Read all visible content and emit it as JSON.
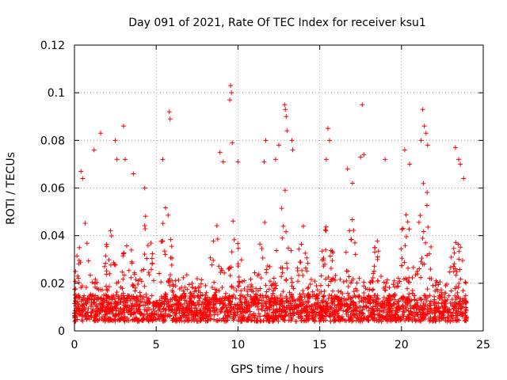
{
  "chart_data": {
    "type": "scatter",
    "title": "Day 091 of 2021, Rate Of TEC Index for receiver ksu1",
    "xlabel": "GPS time / hours",
    "ylabel": "ROTI / TECUs",
    "xlim": [
      0,
      25
    ],
    "ylim": [
      0,
      0.12
    ],
    "xticks": [
      0,
      5,
      10,
      15,
      20,
      25
    ],
    "xtick_labels": [
      "0",
      "5",
      "10",
      "15",
      "20",
      "25"
    ],
    "yticks": [
      0,
      0.02,
      0.04,
      0.06,
      0.08,
      0.1,
      0.12
    ],
    "ytick_labels": [
      "0",
      "0.02",
      "0.04",
      "0.06",
      "0.08",
      "0.1",
      "0.12"
    ],
    "grid": true,
    "marker": "plus",
    "marker_color": "#ff0000",
    "series": [
      {
        "name": "ROTI",
        "x_range": [
          0,
          24
        ],
        "baseline_typical": [
          0.004,
          0.015
        ],
        "notable_points": [
          {
            "x": 0.4,
            "y": 0.067
          },
          {
            "x": 0.5,
            "y": 0.064
          },
          {
            "x": 1.2,
            "y": 0.076
          },
          {
            "x": 1.6,
            "y": 0.083
          },
          {
            "x": 2.5,
            "y": 0.08
          },
          {
            "x": 2.6,
            "y": 0.072
          },
          {
            "x": 3.0,
            "y": 0.086
          },
          {
            "x": 3.1,
            "y": 0.072
          },
          {
            "x": 3.6,
            "y": 0.066
          },
          {
            "x": 4.3,
            "y": 0.06
          },
          {
            "x": 5.4,
            "y": 0.072
          },
          {
            "x": 5.8,
            "y": 0.092
          },
          {
            "x": 5.85,
            "y": 0.089
          },
          {
            "x": 8.9,
            "y": 0.075
          },
          {
            "x": 9.1,
            "y": 0.071
          },
          {
            "x": 9.55,
            "y": 0.103
          },
          {
            "x": 9.6,
            "y": 0.1
          },
          {
            "x": 9.5,
            "y": 0.097
          },
          {
            "x": 9.65,
            "y": 0.079
          },
          {
            "x": 10.0,
            "y": 0.071
          },
          {
            "x": 11.7,
            "y": 0.08
          },
          {
            "x": 11.6,
            "y": 0.071
          },
          {
            "x": 12.3,
            "y": 0.072
          },
          {
            "x": 12.5,
            "y": 0.078
          },
          {
            "x": 12.85,
            "y": 0.095
          },
          {
            "x": 12.9,
            "y": 0.093
          },
          {
            "x": 12.95,
            "y": 0.09
          },
          {
            "x": 13.0,
            "y": 0.084
          },
          {
            "x": 13.3,
            "y": 0.08
          },
          {
            "x": 13.35,
            "y": 0.076
          },
          {
            "x": 15.5,
            "y": 0.085
          },
          {
            "x": 15.6,
            "y": 0.08
          },
          {
            "x": 15.4,
            "y": 0.072
          },
          {
            "x": 16.7,
            "y": 0.068
          },
          {
            "x": 17.0,
            "y": 0.062
          },
          {
            "x": 17.5,
            "y": 0.073
          },
          {
            "x": 17.6,
            "y": 0.095
          },
          {
            "x": 17.7,
            "y": 0.074
          },
          {
            "x": 19.0,
            "y": 0.072
          },
          {
            "x": 20.2,
            "y": 0.076
          },
          {
            "x": 20.5,
            "y": 0.07
          },
          {
            "x": 21.2,
            "y": 0.08
          },
          {
            "x": 21.3,
            "y": 0.093
          },
          {
            "x": 21.4,
            "y": 0.086
          },
          {
            "x": 21.5,
            "y": 0.083
          },
          {
            "x": 21.6,
            "y": 0.078
          },
          {
            "x": 23.3,
            "y": 0.077
          },
          {
            "x": 23.5,
            "y": 0.072
          },
          {
            "x": 23.6,
            "y": 0.07
          },
          {
            "x": 23.8,
            "y": 0.064
          }
        ]
      }
    ]
  }
}
